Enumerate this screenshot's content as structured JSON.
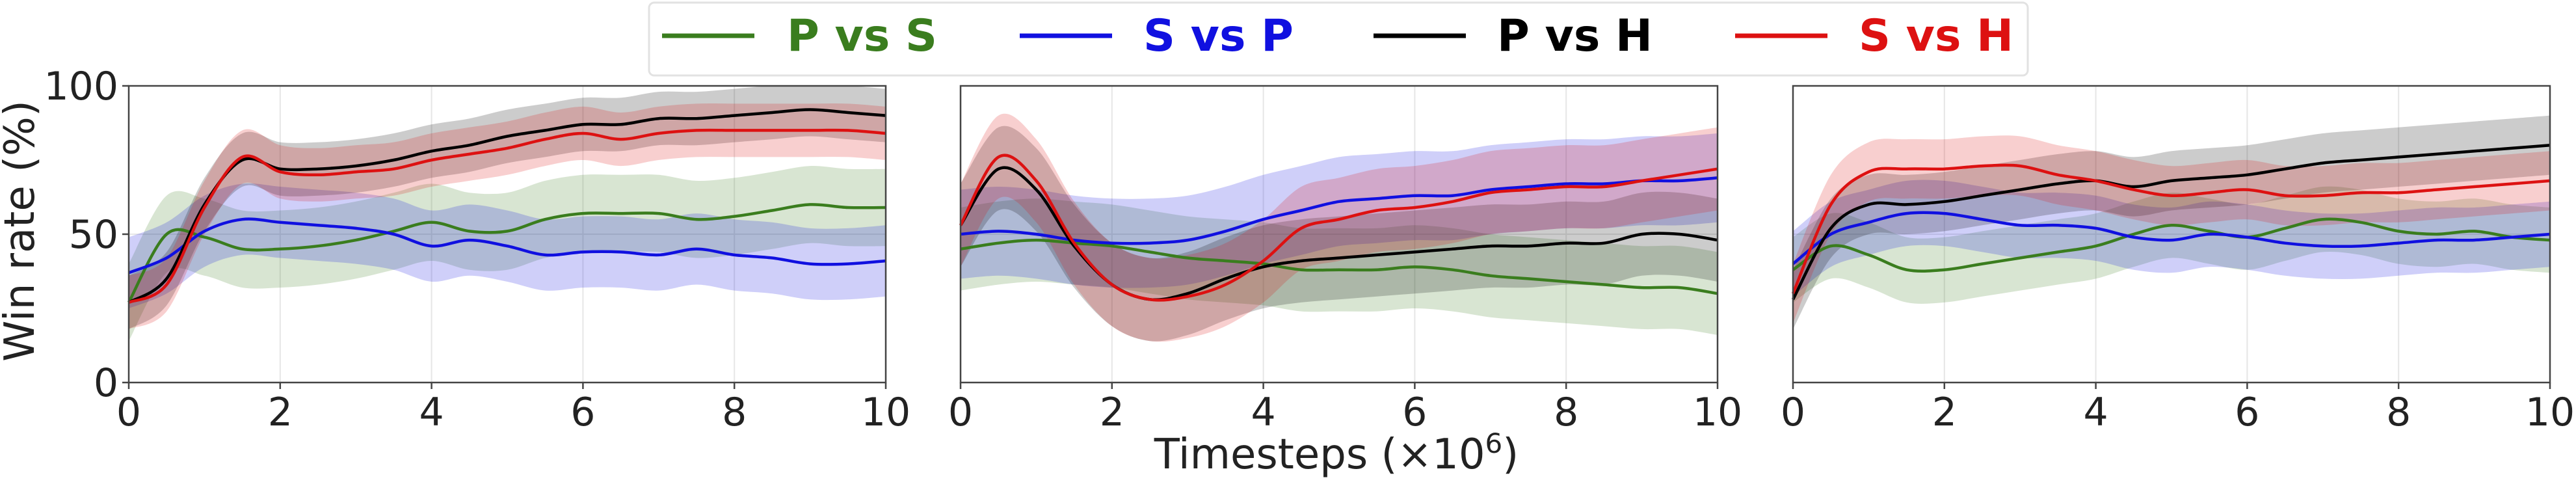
{
  "chart_data": [
    {
      "type": "line",
      "xlabel": "Timesteps (×10",
      "xlabel_exp": "6",
      "xlabel_close": ")",
      "ylabel": "Win rate (%)",
      "xlim": [
        0,
        10
      ],
      "ylim": [
        0,
        100
      ],
      "xticks": [
        "0",
        "2",
        "4",
        "6",
        "8",
        "10"
      ],
      "yticks": [
        "0",
        "50",
        "100"
      ],
      "grid": true,
      "legend_position": "top-center",
      "x": [
        0,
        0.5,
        1,
        1.5,
        2,
        2.5,
        3,
        3.5,
        4,
        4.5,
        5,
        5.5,
        6,
        6.5,
        7,
        7.5,
        8,
        8.5,
        9,
        9.5,
        10
      ],
      "series": [
        {
          "name": "P vs S",
          "color": "#3a7d1e",
          "values": [
            27,
            50,
            49,
            45,
            45,
            46,
            48,
            51,
            54,
            51,
            51,
            55,
            57,
            57,
            57,
            55,
            56,
            58,
            60,
            59,
            59
          ],
          "band": 13
        },
        {
          "name": "S vs P",
          "color": "#1010e0",
          "values": [
            37,
            42,
            51,
            55,
            54,
            53,
            52,
            50,
            46,
            48,
            46,
            43,
            44,
            44,
            43,
            45,
            43,
            42,
            40,
            40,
            41
          ],
          "band": 12
        },
        {
          "name": "P vs H",
          "color": "#000000",
          "values": [
            27,
            35,
            60,
            75,
            72,
            72,
            73,
            75,
            78,
            80,
            83,
            85,
            87,
            87,
            89,
            89,
            90,
            91,
            92,
            91,
            90
          ],
          "band": 9
        },
        {
          "name": "S vs H",
          "color": "#dd1111",
          "values": [
            27,
            33,
            59,
            76,
            71,
            70,
            71,
            72,
            75,
            77,
            79,
            82,
            84,
            82,
            84,
            85,
            85,
            85,
            85,
            85,
            84
          ],
          "band": 9
        }
      ]
    },
    {
      "type": "line",
      "xlim": [
        0,
        10
      ],
      "ylim": [
        0,
        100
      ],
      "xticks": [
        "0",
        "2",
        "4",
        "6",
        "8",
        "10"
      ],
      "grid": true,
      "x": [
        0,
        0.5,
        1,
        1.5,
        2,
        2.5,
        3,
        3.5,
        4,
        4.5,
        5,
        5.5,
        6,
        6.5,
        7,
        7.5,
        8,
        8.5,
        9,
        9.5,
        10
      ],
      "series": [
        {
          "name": "P vs S",
          "color": "#3a7d1e",
          "values": [
            45,
            47,
            48,
            47,
            46,
            44,
            42,
            41,
            40,
            38,
            38,
            38,
            39,
            38,
            36,
            35,
            34,
            33,
            32,
            32,
            30
          ],
          "band": 14
        },
        {
          "name": "S vs P",
          "color": "#1010e0",
          "values": [
            50,
            51,
            50,
            48,
            47,
            47,
            48,
            51,
            55,
            58,
            61,
            62,
            63,
            63,
            65,
            66,
            67,
            67,
            68,
            68,
            69
          ],
          "band": 15
        },
        {
          "name": "P vs H",
          "color": "#000000",
          "values": [
            53,
            72,
            65,
            46,
            33,
            28,
            30,
            35,
            39,
            41,
            42,
            43,
            44,
            45,
            46,
            46,
            47,
            47,
            50,
            50,
            48
          ],
          "band": 14
        },
        {
          "name": "S vs H",
          "color": "#dd1111",
          "values": [
            53,
            76,
            68,
            47,
            33,
            28,
            29,
            33,
            41,
            52,
            55,
            58,
            59,
            61,
            64,
            65,
            66,
            66,
            68,
            70,
            72
          ],
          "band": 14
        }
      ]
    },
    {
      "type": "line",
      "xlim": [
        0,
        10
      ],
      "ylim": [
        0,
        100
      ],
      "xticks": [
        "0",
        "2",
        "4",
        "6",
        "8",
        "10"
      ],
      "grid": true,
      "x": [
        0,
        0.5,
        1,
        1.5,
        2,
        2.5,
        3,
        3.5,
        4,
        4.5,
        5,
        5.5,
        6,
        6.5,
        7,
        7.5,
        8,
        8.5,
        9,
        9.5,
        10
      ],
      "series": [
        {
          "name": "P vs S",
          "color": "#3a7d1e",
          "values": [
            38,
            46,
            43,
            38,
            38,
            40,
            42,
            44,
            46,
            50,
            53,
            51,
            49,
            52,
            55,
            54,
            51,
            50,
            51,
            49,
            48
          ],
          "band": 11
        },
        {
          "name": "S vs P",
          "color": "#1010e0",
          "values": [
            40,
            50,
            54,
            57,
            57,
            55,
            53,
            53,
            52,
            49,
            48,
            50,
            49,
            47,
            46,
            46,
            47,
            48,
            48,
            49,
            50
          ],
          "band": 11
        },
        {
          "name": "P vs H",
          "color": "#000000",
          "values": [
            28,
            52,
            60,
            60,
            61,
            63,
            65,
            67,
            68,
            66,
            68,
            69,
            70,
            72,
            74,
            75,
            76,
            77,
            78,
            79,
            80
          ],
          "band": 10
        },
        {
          "name": "S vs H",
          "color": "#dd1111",
          "values": [
            30,
            60,
            71,
            72,
            72,
            73,
            73,
            70,
            68,
            65,
            63,
            64,
            65,
            63,
            63,
            64,
            64,
            65,
            66,
            67,
            68
          ],
          "band": 10
        }
      ]
    }
  ]
}
